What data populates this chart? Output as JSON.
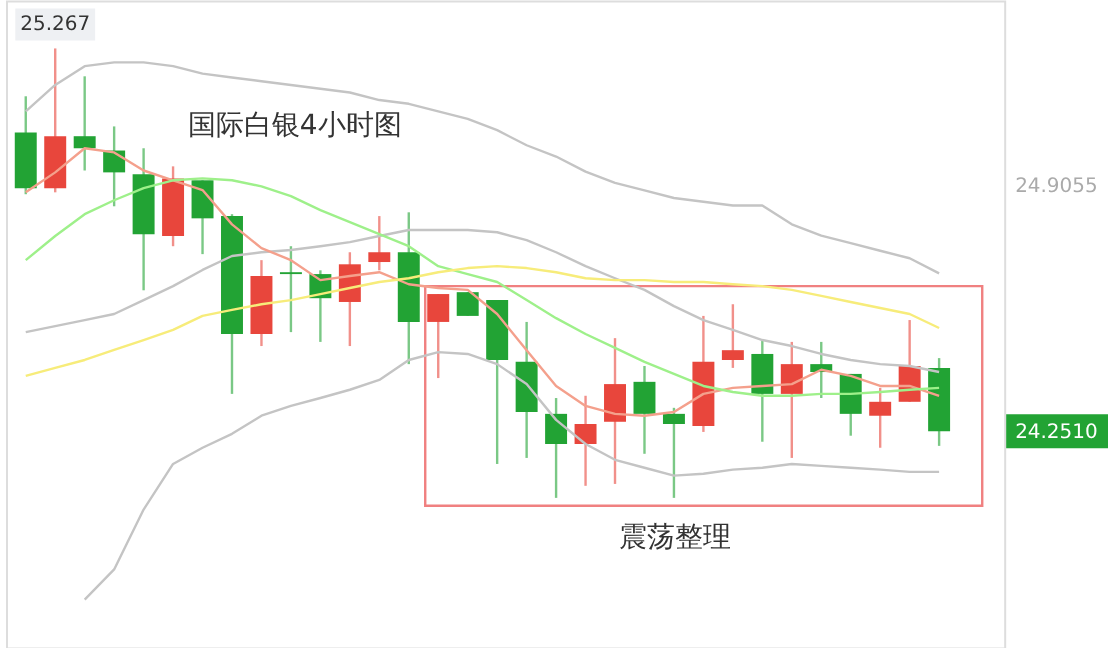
{
  "chart_data": {
    "type": "candlestick",
    "title": "国际白银4小时图",
    "categories": [
      null,
      null,
      null,
      null,
      null,
      null,
      null,
      null,
      null,
      null,
      null,
      null,
      null,
      null,
      null,
      null,
      null,
      null,
      null,
      null,
      null,
      null,
      null,
      null,
      null,
      null,
      null,
      null,
      null,
      null,
      null,
      null
    ],
    "ohlc": [
      [
        25.044,
        25.14,
        24.88,
        24.896
      ],
      [
        24.896,
        25.267,
        24.885,
        25.034
      ],
      [
        25.034,
        25.193,
        24.943,
        25.002
      ],
      [
        24.996,
        25.06,
        24.848,
        24.938
      ],
      [
        24.933,
        25.002,
        24.625,
        24.774
      ],
      [
        24.769,
        24.954,
        24.742,
        24.922
      ],
      [
        24.917,
        24.917,
        24.721,
        24.816
      ],
      [
        24.822,
        24.827,
        24.35,
        24.509
      ],
      [
        24.509,
        24.705,
        24.477,
        24.663
      ],
      [
        24.673,
        24.742,
        24.514,
        24.668
      ],
      [
        24.668,
        24.678,
        24.488,
        24.604
      ],
      [
        24.594,
        24.726,
        24.477,
        24.694
      ],
      [
        24.7,
        24.822,
        24.678,
        24.726
      ],
      [
        24.726,
        24.832,
        24.429,
        24.541
      ],
      [
        24.541,
        24.615,
        24.392,
        24.615
      ],
      [
        24.62,
        24.62,
        24.557,
        24.557
      ],
      [
        24.599,
        24.599,
        24.164,
        24.44
      ],
      [
        24.435,
        24.541,
        24.18,
        24.302
      ],
      [
        24.297,
        24.339,
        24.074,
        24.217
      ],
      [
        24.217,
        24.345,
        24.106,
        24.27
      ],
      [
        24.276,
        24.498,
        24.111,
        24.376
      ],
      [
        24.382,
        24.424,
        24.191,
        24.297
      ],
      [
        24.297,
        24.313,
        24.074,
        24.27
      ],
      [
        24.265,
        24.557,
        24.249,
        24.435
      ],
      [
        24.44,
        24.588,
        24.419,
        24.466
      ],
      [
        24.456,
        24.493,
        24.223,
        24.35
      ],
      [
        24.35,
        24.488,
        24.18,
        24.429
      ],
      [
        24.429,
        24.488,
        24.339,
        24.408
      ],
      [
        24.403,
        24.403,
        24.239,
        24.297
      ],
      [
        24.292,
        24.366,
        24.207,
        24.329
      ],
      [
        24.329,
        24.546,
        24.329,
        24.424
      ],
      [
        24.419,
        24.445,
        24.212,
        24.251
      ]
    ],
    "colors": [
      "#22a334",
      "#e8463c",
      "#22a334",
      "#22a334",
      "#22a334",
      "#e8463c",
      "#22a334",
      "#22a334",
      "#e8463c",
      "#22a334",
      "#22a334",
      "#e8463c",
      "#e8463c",
      "#22a334",
      "#e8463c",
      "#22a334",
      "#22a334",
      "#22a334",
      "#22a334",
      "#e8463c",
      "#e8463c",
      "#22a334",
      "#22a334",
      "#e8463c",
      "#e8463c",
      "#22a334",
      "#e8463c",
      "#22a334",
      "#22a334",
      "#e8463c",
      "#e8463c",
      "#22a334"
    ],
    "series": [
      {
        "type": "line",
        "color": "#c4c4c4",
        "values": [
          25.1,
          25.17,
          25.22,
          25.23,
          25.23,
          25.22,
          25.2,
          25.19,
          25.18,
          25.17,
          25.16,
          25.15,
          25.13,
          25.12,
          25.1,
          25.08,
          25.05,
          25.01,
          24.98,
          24.94,
          24.91,
          24.89,
          24.87,
          24.86,
          24.85,
          24.85,
          24.8,
          24.77,
          24.75,
          24.73,
          24.71,
          24.67
        ]
      },
      {
        "type": "line",
        "color": "#c4c4c4",
        "values": [
          24.514,
          24.53,
          24.546,
          24.562,
          24.599,
          24.636,
          24.679,
          24.716,
          24.726,
          24.732,
          24.742,
          24.753,
          24.769,
          24.785,
          24.785,
          24.785,
          24.779,
          24.758,
          24.726,
          24.689,
          24.657,
          24.626,
          24.583,
          24.546,
          24.52,
          24.493,
          24.477,
          24.456,
          24.44,
          24.429,
          24.424,
          24.408
        ]
      },
      {
        "type": "line",
        "color": "#c4c4c4",
        "values": [
          null,
          null,
          23.804,
          23.884,
          24.043,
          24.164,
          24.207,
          24.244,
          24.292,
          24.318,
          24.339,
          24.361,
          24.387,
          24.44,
          24.461,
          24.456,
          24.429,
          24.376,
          24.281,
          24.217,
          24.175,
          24.154,
          24.133,
          24.138,
          24.149,
          24.154,
          24.164,
          24.159,
          24.154,
          24.149,
          24.143,
          24.143
        ]
      },
      {
        "type": "line",
        "color": "#f4a08c",
        "values": [
          24.885,
          24.938,
          25.002,
          24.991,
          24.943,
          24.917,
          24.891,
          24.8,
          24.737,
          24.705,
          24.652,
          24.663,
          24.673,
          24.641,
          24.631,
          24.626,
          24.562,
          24.466,
          24.371,
          24.318,
          24.297,
          24.292,
          24.302,
          24.35,
          24.366,
          24.371,
          24.376,
          24.414,
          24.398,
          24.371,
          24.371,
          24.345
        ]
      },
      {
        "type": "line",
        "color": "#9ef08a",
        "values": [
          24.705,
          24.769,
          24.827,
          24.864,
          24.896,
          24.917,
          24.922,
          24.917,
          24.901,
          24.875,
          24.838,
          24.806,
          24.774,
          24.742,
          24.689,
          24.668,
          24.647,
          24.599,
          24.551,
          24.509,
          24.472,
          24.435,
          24.403,
          24.371,
          24.355,
          24.345,
          24.345,
          24.35,
          24.35,
          24.355,
          24.361,
          24.366
        ]
      },
      {
        "type": "line",
        "color": "#f7ec7a",
        "values": [
          24.398,
          24.419,
          24.44,
          24.467,
          24.493,
          24.52,
          24.557,
          24.573,
          24.588,
          24.599,
          24.615,
          24.631,
          24.647,
          24.657,
          24.673,
          24.684,
          24.689,
          24.684,
          24.673,
          24.657,
          24.652,
          24.652,
          24.647,
          24.647,
          24.641,
          24.636,
          24.626,
          24.61,
          24.594,
          24.578,
          24.562,
          24.525
        ]
      }
    ],
    "ylim": [
      23.677,
      25.394
    ],
    "yticks": [
      24.9055,
      {
        "value": 24.251,
        "label": "24.2510"
      }
    ],
    "annotations": [
      {
        "text": "25.267",
        "y": 25.267
      },
      "震荡整理"
    ],
    "grid": false
  }
}
